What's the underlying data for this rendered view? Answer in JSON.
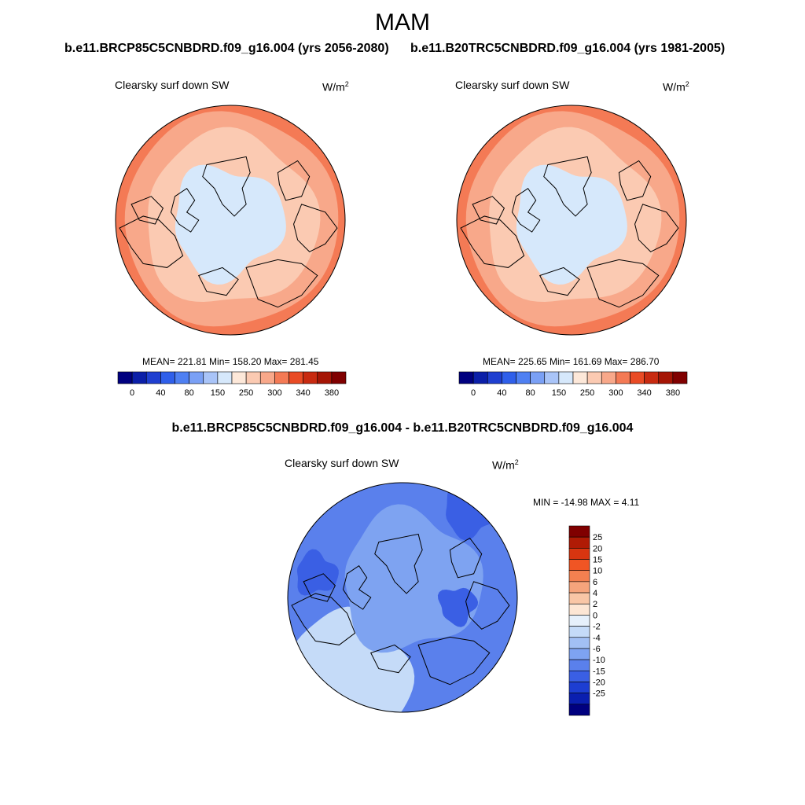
{
  "figure": {
    "title": "MAM",
    "subtitle_left": "b.e11.BRCP85C5CNBDRD.f09_g16.004 (yrs 2056-2080)",
    "subtitle_right": "b.e11.B20TRC5CNBDRD.f09_g16.004 (yrs 1981-2005)",
    "diff_title": "b.e11.BRCP85C5CNBDRD.f09_g16.004 - b.e11.B20TRC5CNBDRD.f09_g16.004"
  },
  "chart_data": [
    {
      "type": "heatmap",
      "projection": "north polar stereographic",
      "title": "Clearsky surf down SW",
      "units": "W/m",
      "units_sup": "2",
      "stats": {
        "mean": 221.81,
        "min": 158.2,
        "max": 281.45
      },
      "stats_text": "MEAN= 221.81  Min= 158.20  Max= 281.45",
      "levels": [
        0,
        20,
        40,
        60,
        80,
        100,
        150,
        200,
        250,
        275,
        300,
        320,
        340,
        360,
        380
      ],
      "tick_labels": [
        "0",
        "40",
        "80",
        "150",
        "250",
        "300",
        "340",
        "380"
      ],
      "colors": [
        "#00007f",
        "#0b1fa8",
        "#1f3fd0",
        "#2f5fea",
        "#4f80f2",
        "#7aa0f5",
        "#a9c4f8",
        "#d6e8fb",
        "#fde8d9",
        "#fbcab2",
        "#f8a88a",
        "#f47a55",
        "#e94b25",
        "#c82a10",
        "#a51505",
        "#800000"
      ],
      "regions": [
        {
          "zone": "central arctic (ocean and high latitudes)",
          "approx_value": 175,
          "bin": "150-200"
        },
        {
          "zone": "mid latitudes ring",
          "approx_value": 262,
          "bin": "250-275"
        },
        {
          "zone": "outer southern ring",
          "approx_value": 288,
          "bin": "275-300"
        },
        {
          "zone": "southern edge cells",
          "approx_value": 305,
          "bin": "300-320"
        }
      ]
    },
    {
      "type": "heatmap",
      "projection": "north polar stereographic",
      "title": "Clearsky surf down SW",
      "units": "W/m",
      "units_sup": "2",
      "stats": {
        "mean": 225.65,
        "min": 161.69,
        "max": 286.7
      },
      "stats_text": "MEAN= 225.65  Min= 161.69  Max= 286.70",
      "levels": [
        0,
        20,
        40,
        60,
        80,
        100,
        150,
        200,
        250,
        275,
        300,
        320,
        340,
        360,
        380
      ],
      "tick_labels": [
        "0",
        "40",
        "80",
        "150",
        "250",
        "300",
        "340",
        "380"
      ],
      "colors": [
        "#00007f",
        "#0b1fa8",
        "#1f3fd0",
        "#2f5fea",
        "#4f80f2",
        "#7aa0f5",
        "#a9c4f8",
        "#d6e8fb",
        "#fde8d9",
        "#fbcab2",
        "#f8a88a",
        "#f47a55",
        "#e94b25",
        "#c82a10",
        "#a51505",
        "#800000"
      ],
      "regions": [
        {
          "zone": "central arctic",
          "approx_value": 180,
          "bin": "150-200"
        },
        {
          "zone": "mid latitudes ring",
          "approx_value": 265,
          "bin": "250-275"
        },
        {
          "zone": "outer southern ring",
          "approx_value": 290,
          "bin": "275-300"
        },
        {
          "zone": "southern edge cells",
          "approx_value": 310,
          "bin": "300-320"
        }
      ]
    },
    {
      "type": "heatmap",
      "projection": "north polar stereographic",
      "title": "Clearsky surf down SW",
      "units": "W/m",
      "units_sup": "2",
      "stats": {
        "min": -14.98,
        "max": 4.11
      },
      "stats_text": "MIN = -14.98 MAX =   4.11",
      "levels": [
        -25,
        -20,
        -15,
        -10,
        -6,
        -4,
        -2,
        0,
        2,
        4,
        6,
        10,
        15,
        20,
        25
      ],
      "level_labels": [
        "25",
        "20",
        "15",
        "10",
        "6",
        "4",
        "2",
        "0",
        "-2",
        "-4",
        "-6",
        "-10",
        "-15",
        "-20",
        "-25"
      ],
      "colors_top_to_bottom": [
        "#800000",
        "#b01b05",
        "#d83510",
        "#f05524",
        "#f48050",
        "#f6a47c",
        "#f9c6a6",
        "#fde6d4",
        "#e6f0fb",
        "#c5dbf8",
        "#a2c0f4",
        "#7ea3f1",
        "#5a80ec",
        "#3a5fe4",
        "#1d3ed2",
        "#0a1fb0",
        "#00007f"
      ],
      "regions": [
        {
          "zone": "central arctic",
          "approx_value": -5,
          "bin": "-6 to -4"
        },
        {
          "zone": "land margins and mid latitudes",
          "approx_value": -7,
          "bin": "-10 to -6"
        },
        {
          "zone": "siberian and hudson bay patches",
          "approx_value": -12,
          "bin": "-15 to -10"
        },
        {
          "zone": "southern edge",
          "approx_value": -1,
          "bin": "-2 to 0"
        }
      ]
    }
  ]
}
